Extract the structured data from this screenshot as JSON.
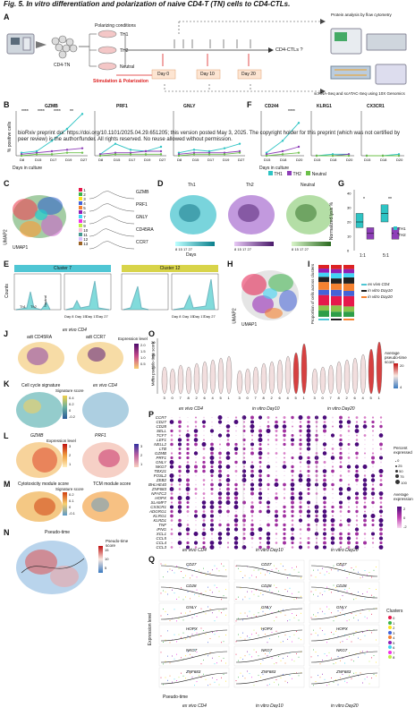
{
  "fig_title": "Fig. 5. In vitro differentiation and polarization of naive CD4-T (TN) cells to CD4-CTLs.",
  "watermark": "bioRxiv preprint doi: https://doi.org/10.1101/2025.04.29.651205; this version posted May 3, 2025. The copyright holder for this preprint (which was not certified by peer review) is the author/funder. All rights reserved. No reuse allowed without permission.",
  "panels": [
    "A",
    "B",
    "C",
    "D",
    "E",
    "F",
    "G",
    "H",
    "I",
    "J",
    "K",
    "L",
    "M",
    "N",
    "O",
    "P",
    "Q"
  ],
  "A": {
    "cd4tn": "CD4-TN",
    "polarizing": "Polarizing conditions",
    "th1": "TH1",
    "th2": "TH2",
    "neutral": "Neutral",
    "stim": "Stimulation & Polarization",
    "days": [
      "Day 0",
      "Day 10",
      "Day 20"
    ],
    "question": "CD4-CTLs ?",
    "flow": "Protein analysis by flow cytometry",
    "scrna": "scRNA-Seq and scATAC-Seq using 10X Genomics"
  },
  "B": {
    "genes": [
      "GZMB",
      "PRF1",
      "GNLY"
    ],
    "ylabel": "% positive cells",
    "xlabel": "Days in culture",
    "xticks": [
      "D8",
      "D15",
      "D17",
      "D19",
      "D27"
    ],
    "stars": [
      "****",
      "****",
      "****",
      "**"
    ],
    "legend": [
      "TH1",
      "TH2",
      "Neutral"
    ]
  },
  "F": {
    "genes": [
      "CD244",
      "KLRG1",
      "CX3CR1"
    ],
    "ylabel": "% positive cells",
    "xlabel": "Days in culture",
    "xticks": [
      "D15",
      "D18",
      "D20"
    ],
    "stars": [
      "****"
    ]
  },
  "C": {
    "axis_x": "UMAP1",
    "axis_y": "UMAP2",
    "clusters": [
      "1",
      "2",
      "3",
      "4",
      "5",
      "6",
      "7",
      "8",
      "9",
      "10",
      "11",
      "12",
      "13"
    ],
    "genes": [
      "GZMB",
      "PRF1",
      "GNLY",
      "CD45RA",
      "CCR7"
    ]
  },
  "D": {
    "groups": [
      "Th1",
      "Th2",
      "Neutral"
    ],
    "days_label": "Days",
    "days": [
      "8",
      "15",
      "17",
      "27"
    ]
  },
  "E": {
    "cluster7": "Cluster 7",
    "cluster12": "Cluster 12",
    "ylabel": "Counts",
    "xticks": [
      "Day 8",
      "Day 15",
      "Day 17",
      "Day 27"
    ],
    "groups": [
      "Th1",
      "Th2",
      "Neutral"
    ]
  },
  "G": {
    "ylabel": "Normalized lysis %",
    "xticks": [
      "1:1",
      "5:1"
    ],
    "stars": [
      "*",
      "**"
    ],
    "legend": [
      "TH1",
      "TH2"
    ],
    "yticks": [
      "0",
      "10",
      "20",
      "30",
      "40"
    ]
  },
  "H": {
    "axis_x": "UMAP1",
    "axis_y": "UMAP2",
    "clusters": [
      "0",
      "1",
      "2",
      "3",
      "4",
      "5",
      "6",
      "7",
      "8"
    ]
  },
  "I": {
    "ylabel": "Proportion of cells across clusters",
    "legend": [
      "ex vivo CD4",
      "in vitro Day10",
      "in vitro Day20"
    ]
  },
  "J": {
    "title": "ex vivo CD4",
    "sub1": "adt CD45RA",
    "sub2": "adt CCR7",
    "legend": "Expression level",
    "ticks": [
      "2.0",
      "1.5",
      "1.0",
      "0.5"
    ]
  },
  "K": {
    "title1": "Cell cycle signature",
    "title2": "ex vivo CD4",
    "legend": "Signature score",
    "ticks": [
      "0.4",
      "0.2",
      "0",
      "-0.2"
    ]
  },
  "L": {
    "genes": [
      "GZMB",
      "PRF1"
    ],
    "legend": "Expression level",
    "ticks1": [
      "3",
      "2",
      "1"
    ],
    "ticks2": [
      "3",
      "2",
      "1"
    ]
  },
  "M": {
    "title1": "Cytotoxicity module score",
    "title2": "TCM module score",
    "legend": "Signature score",
    "ticks": [
      "0.2",
      "0.1",
      "0",
      "-0.1"
    ]
  },
  "N": {
    "title": "Pseudo-time",
    "legend": "Pseudo-time score",
    "ticks": [
      "15",
      "10",
      "5"
    ]
  },
  "O": {
    "ylabel": "Mean pseudo-time score",
    "legend": "Average pseudo-time score",
    "ticks": [
      "20",
      "4"
    ],
    "yticks": [
      "20",
      "15",
      "10",
      "5"
    ],
    "clusters_a": [
      "3",
      "0",
      "7",
      "8",
      "2",
      "6",
      "4",
      "5",
      "1"
    ],
    "clusters_b": [
      "3",
      "0",
      "7",
      "8",
      "2",
      "6",
      "4",
      "5",
      "1"
    ],
    "clusters_c": [
      "3",
      "0",
      "7",
      "8",
      "2",
      "6",
      "4",
      "5",
      "1"
    ],
    "groups": [
      "ex vivo CD4",
      "in vitro Day10",
      "in vitro Day20"
    ]
  },
  "P": {
    "genes": [
      "CCR7",
      "CD27",
      "CD28",
      "SELL",
      "TCF7",
      "LEF1",
      "NELL2",
      "LTB",
      "GZMB",
      "PRF1",
      "GNLY",
      "NKG7",
      "TBX21",
      "FOSL2",
      "ZEB2",
      "BHLHE40",
      "ZNF683",
      "NFATC2",
      "HOPX",
      "SLAMF7",
      "CX3CR1",
      "ADGRG1",
      "KLRG1",
      "KLRD1",
      "TNF",
      "IFNG",
      "XCL1",
      "CCL5",
      "CCL4",
      "CCL3"
    ],
    "legend1": "Percent expressed",
    "pct": [
      "0",
      "25",
      "50",
      "75",
      "100"
    ],
    "legend2": "Average expression",
    "ticks": [
      "2",
      "0",
      "-2"
    ],
    "groups": [
      "ex vivo CD4",
      "in vitro Day10",
      "in vitro Day20"
    ]
  },
  "Q": {
    "genes": [
      "CD27",
      "CD28",
      "GNLY",
      "HOPX",
      "NKG7",
      "ZNF683"
    ],
    "ylabel": "Expression level",
    "xlabel": "Pseudo-time",
    "legend": "Clusters",
    "clusters": [
      "0",
      "1",
      "2",
      "3",
      "4",
      "5",
      "6",
      "7",
      "8"
    ],
    "groups": [
      "ex vivo CD4",
      "in vitro Day10",
      "in vitro Day20"
    ]
  },
  "colors": {
    "th1": "#2ec4c4",
    "th2": "#8e3fb8",
    "neutral": "#6cc04a",
    "red": "#d22",
    "cluster": [
      "#e6194b",
      "#3cb44b",
      "#ffe119",
      "#4363d8",
      "#f58231",
      "#911eb4",
      "#42d4f4",
      "#f032e6",
      "#bfef45"
    ]
  }
}
